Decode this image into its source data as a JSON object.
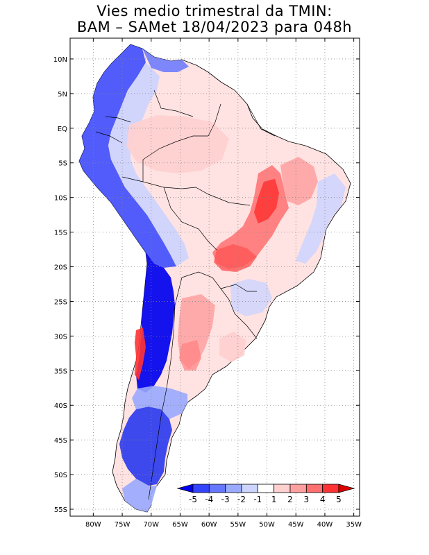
{
  "title": {
    "line1": "Vies medio trimestral da TMIN:",
    "line2": "BAM – SAMet 18/04/2023  para 048h"
  },
  "map": {
    "lon_range": [
      -84,
      -34
    ],
    "lat_range": [
      -56,
      13
    ],
    "grid": true,
    "lat_ticks": [
      "10N",
      "5N",
      "EQ",
      "5S",
      "10S",
      "15S",
      "20S",
      "25S",
      "30S",
      "35S",
      "40S",
      "45S",
      "50S",
      "55S"
    ],
    "lon_ticks": [
      "80W",
      "75W",
      "70W",
      "65W",
      "60W",
      "55W",
      "50W",
      "45W",
      "40W",
      "35W"
    ]
  },
  "colorbar": {
    "labels": [
      "-5",
      "-4",
      "-3",
      "-2",
      "-1",
      "1",
      "2",
      "3",
      "4",
      "5"
    ],
    "colors": [
      "#0000ee",
      "#3344ff",
      "#6677ff",
      "#99aaff",
      "#ccd4ff",
      "#ffffff",
      "#ffd0d0",
      "#ffa0a0",
      "#ff7070",
      "#ff3333",
      "#dd0000"
    ]
  }
}
